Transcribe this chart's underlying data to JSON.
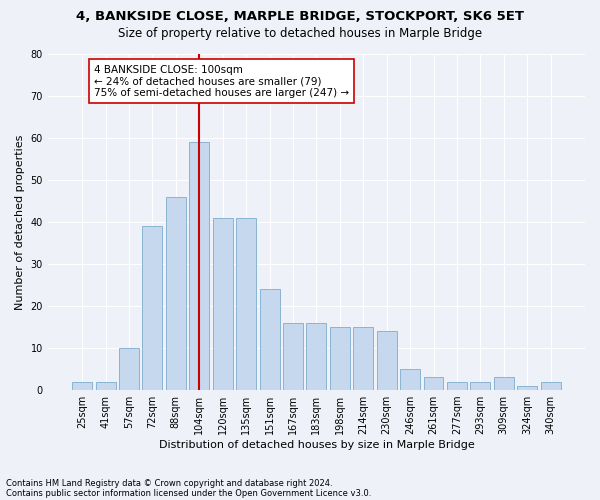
{
  "title": "4, BANKSIDE CLOSE, MARPLE BRIDGE, STOCKPORT, SK6 5ET",
  "subtitle": "Size of property relative to detached houses in Marple Bridge",
  "xlabel": "Distribution of detached houses by size in Marple Bridge",
  "ylabel": "Number of detached properties",
  "categories": [
    "25sqm",
    "41sqm",
    "57sqm",
    "72sqm",
    "88sqm",
    "104sqm",
    "120sqm",
    "135sqm",
    "151sqm",
    "167sqm",
    "183sqm",
    "198sqm",
    "214sqm",
    "230sqm",
    "246sqm",
    "261sqm",
    "277sqm",
    "293sqm",
    "309sqm",
    "324sqm",
    "340sqm"
  ],
  "values": [
    2,
    2,
    10,
    39,
    46,
    59,
    41,
    41,
    24,
    16,
    16,
    15,
    15,
    14,
    5,
    3,
    2,
    2,
    3,
    1,
    2
  ],
  "bar_color": "#c5d8ed",
  "bar_edge_color": "#8ab4d4",
  "bar_edge_width": 0.7,
  "vline_index": 5,
  "vline_color": "#cc0000",
  "annotation_text": "4 BANKSIDE CLOSE: 100sqm\n← 24% of detached houses are smaller (79)\n75% of semi-detached houses are larger (247) →",
  "annotation_box_edgecolor": "#cc0000",
  "ylim": [
    0,
    80
  ],
  "yticks": [
    0,
    10,
    20,
    30,
    40,
    50,
    60,
    70,
    80
  ],
  "background_color": "#eef2f8",
  "grid_color": "#ffffff",
  "footer_line1": "Contains HM Land Registry data © Crown copyright and database right 2024.",
  "footer_line2": "Contains public sector information licensed under the Open Government Licence v3.0.",
  "title_fontsize": 9.5,
  "subtitle_fontsize": 8.5,
  "xlabel_fontsize": 8,
  "ylabel_fontsize": 8,
  "tick_fontsize": 7,
  "annotation_fontsize": 7.5,
  "footer_fontsize": 6
}
